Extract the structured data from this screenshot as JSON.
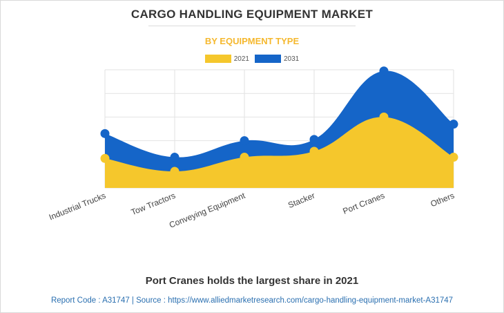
{
  "header": {
    "title": "CARGO HANDLING EQUIPMENT MARKET",
    "subtitle": "BY EQUIPMENT TYPE"
  },
  "colors": {
    "series_2021": "#f5c72c",
    "series_2031": "#1565c8",
    "grid": "#e2e2e2",
    "subtitle": "#f5b82e"
  },
  "chart_data": {
    "type": "area",
    "categories": [
      "Industrial Trucks",
      "Tow Tractors",
      "Conveying Equipment",
      "Stacker",
      "Port Cranes",
      "Others"
    ],
    "series": [
      {
        "name": "2021",
        "values": [
          2.5,
          1.4,
          2.6,
          3.1,
          6.0,
          2.6
        ]
      },
      {
        "name": "2031",
        "values": [
          4.6,
          2.6,
          4.0,
          4.1,
          9.9,
          5.4
        ]
      }
    ],
    "ylim": [
      0,
      10
    ],
    "grid": true,
    "legend_position": "top-center",
    "stacked_display": false
  },
  "footer": {
    "headline": "Port Cranes holds the largest share in 2021",
    "source": "Report Code : A31747  |  Source : https://www.alliedmarketresearch.com/cargo-handling-equipment-market-A31747"
  }
}
